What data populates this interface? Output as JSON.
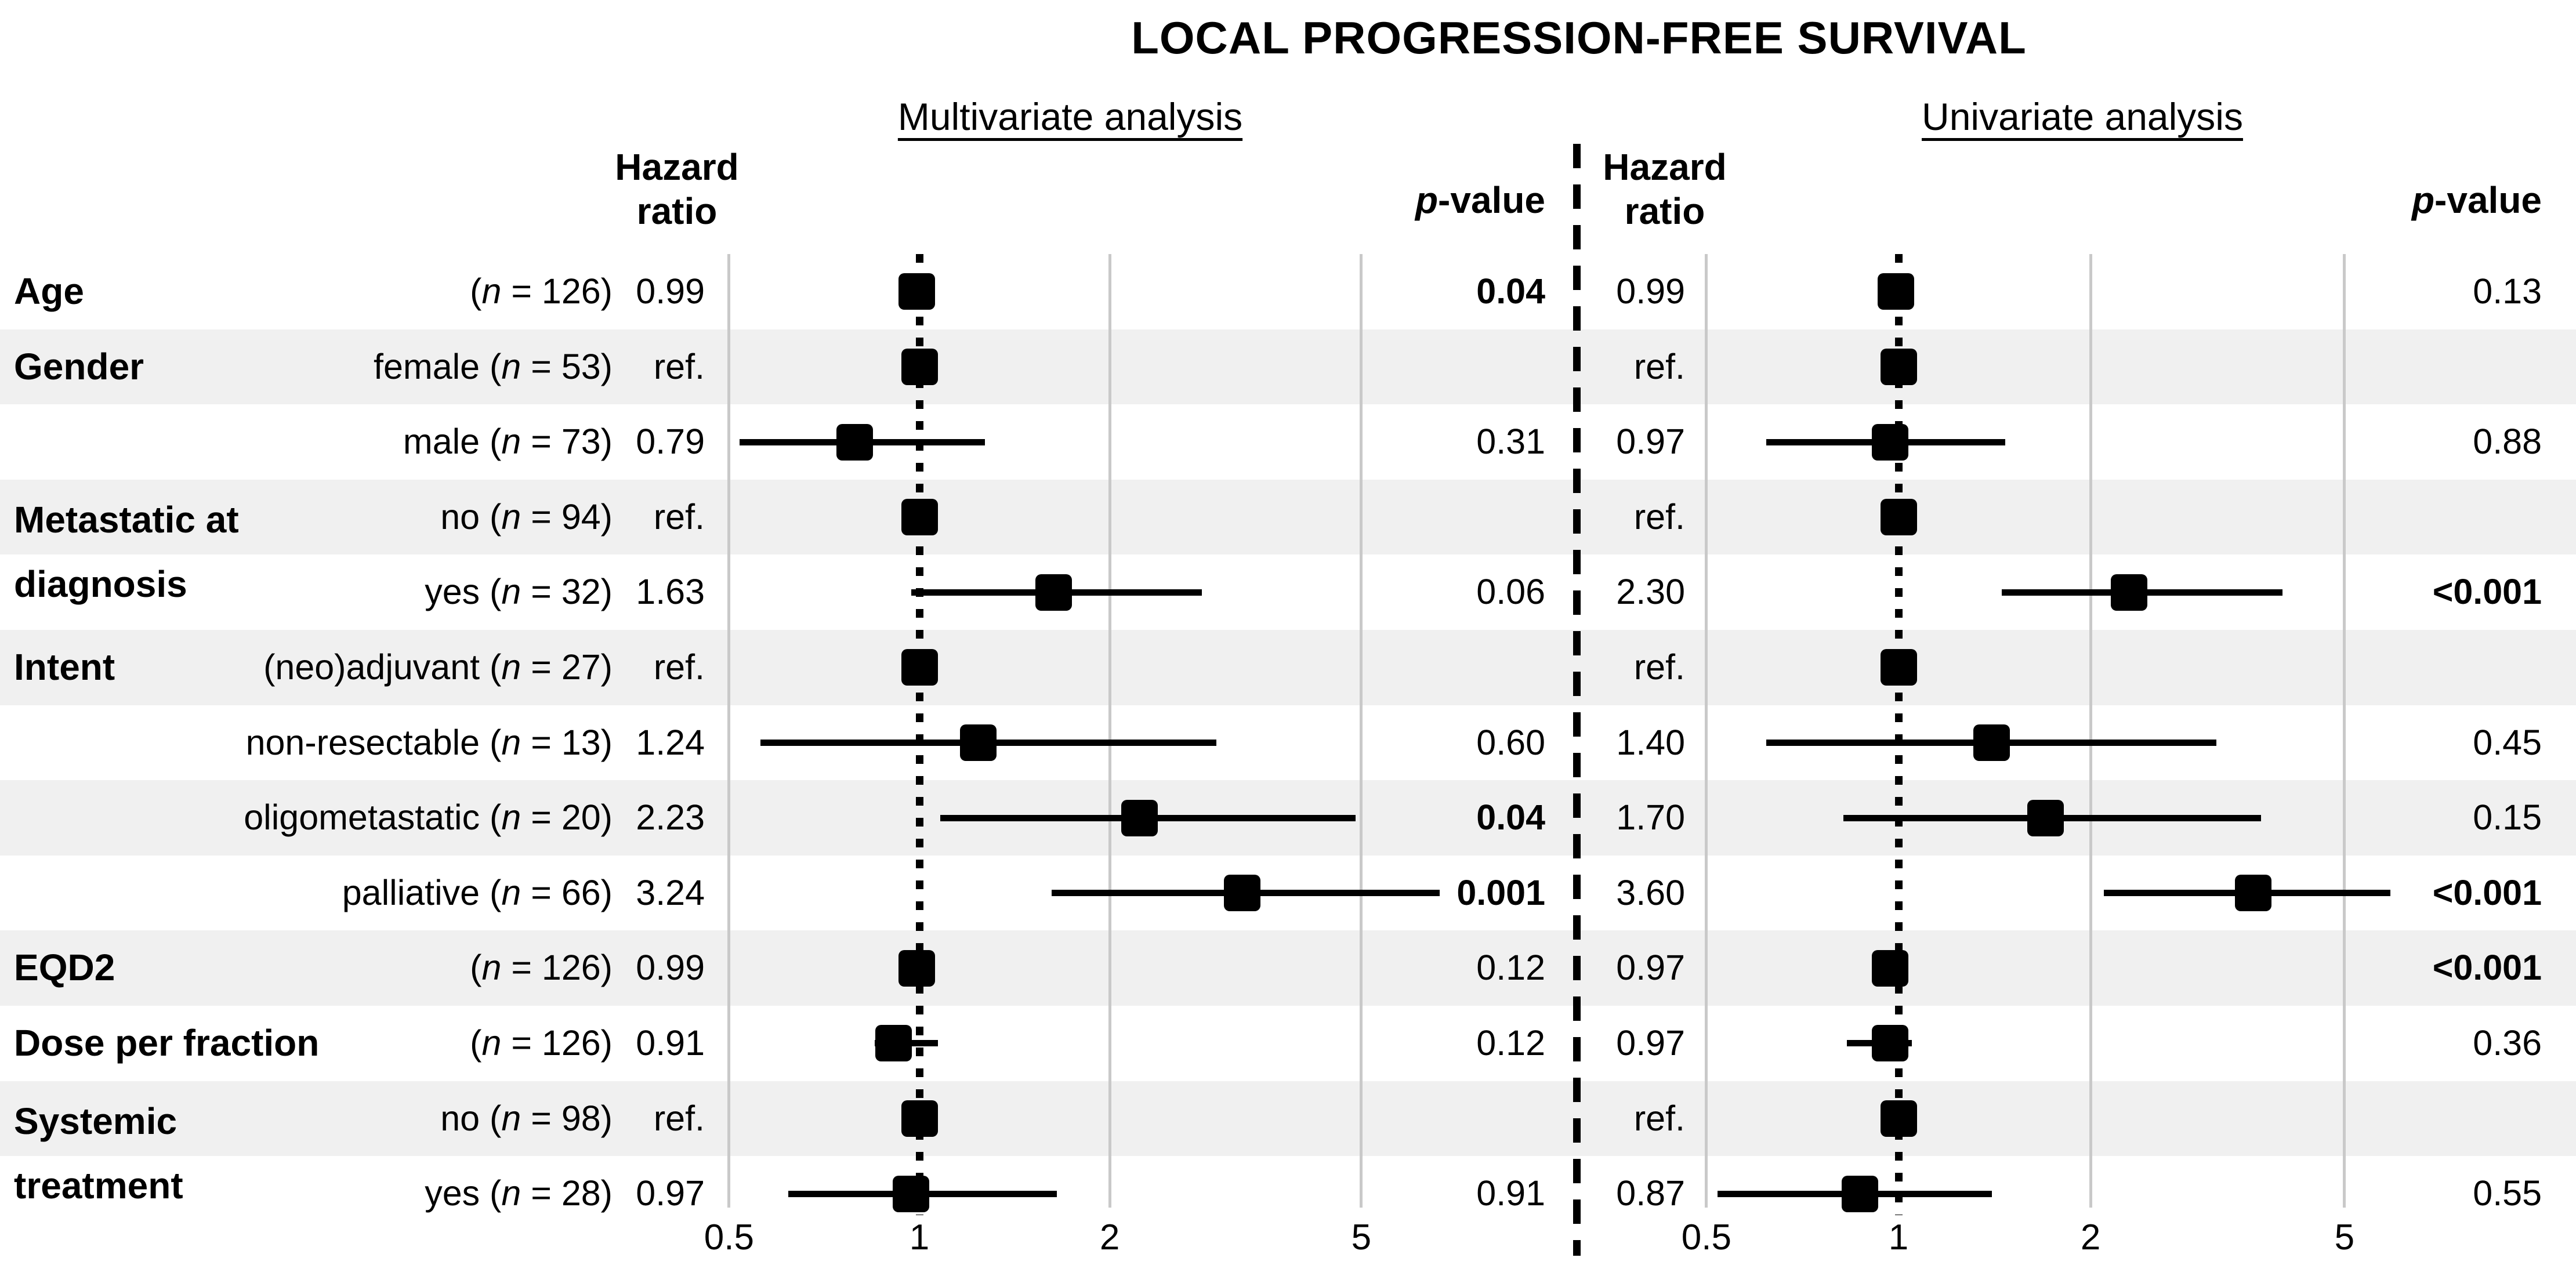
{
  "title": "LOCAL PROGRESSION-FREE SURVIVAL",
  "headers": {
    "multivariate": "Multivariate analysis",
    "univariate": "Univariate analysis",
    "hazard_ratio": [
      "Hazard",
      "ratio"
    ],
    "p_value": "p-value"
  },
  "colors": {
    "ink": "#000000",
    "row_band": "#f0f0f0",
    "gridline": "#c9c9c9",
    "background": "#ffffff"
  },
  "chart_data": {
    "type": "forest",
    "title": "LOCAL PROGRESSION-FREE SURVIVAL",
    "x_scale": "log",
    "x_ticks": [
      0.5,
      1,
      2,
      5
    ],
    "x_tick_labels": [
      "0.5",
      "1",
      "2",
      "5"
    ],
    "reference_value": 1,
    "panels": [
      "Multivariate analysis",
      "Univariate analysis"
    ],
    "columns": [
      "Hazard ratio",
      "plot",
      "p-value"
    ],
    "rows": [
      {
        "group": "Age",
        "label": "(n = 126)",
        "shaded": false,
        "multivariate": {
          "hr": "0.99",
          "ref": false,
          "est": 0.99,
          "lo": null,
          "hi": null,
          "p": "0.04",
          "p_bold": true
        },
        "univariate": {
          "hr": "0.99",
          "ref": false,
          "est": 0.99,
          "lo": null,
          "hi": null,
          "p": "0.13",
          "p_bold": false
        }
      },
      {
        "group": "Gender",
        "label": "female (n = 53)",
        "shaded": true,
        "multivariate": {
          "hr": "ref.",
          "ref": true,
          "est": 1.0,
          "lo": null,
          "hi": null,
          "p": "",
          "p_bold": false
        },
        "univariate": {
          "hr": "ref.",
          "ref": true,
          "est": 1.0,
          "lo": null,
          "hi": null,
          "p": "",
          "p_bold": false
        }
      },
      {
        "group": "",
        "label": "male (n = 73)",
        "shaded": false,
        "multivariate": {
          "hr": "0.79",
          "ref": false,
          "est": 0.79,
          "lo": 0.52,
          "hi": 1.27,
          "p": "0.31",
          "p_bold": false
        },
        "univariate": {
          "hr": "0.97",
          "ref": false,
          "est": 0.97,
          "lo": 0.62,
          "hi": 1.47,
          "p": "0.88",
          "p_bold": false
        }
      },
      {
        "group": "Metastatic at\ndiagnosis",
        "label": "no (n = 94)",
        "shaded": true,
        "multivariate": {
          "hr": "ref.",
          "ref": true,
          "est": 1.0,
          "lo": null,
          "hi": null,
          "p": "",
          "p_bold": false
        },
        "univariate": {
          "hr": "ref.",
          "ref": true,
          "est": 1.0,
          "lo": null,
          "hi": null,
          "p": "",
          "p_bold": false
        }
      },
      {
        "group": "",
        "label": "yes (n = 32)",
        "shaded": false,
        "multivariate": {
          "hr": "1.63",
          "ref": false,
          "est": 1.63,
          "lo": 0.97,
          "hi": 2.8,
          "p": "0.06",
          "p_bold": false
        },
        "univariate": {
          "hr": "2.30",
          "ref": false,
          "est": 2.3,
          "lo": 1.45,
          "hi": 4.0,
          "p": "<0.001",
          "p_bold": true
        }
      },
      {
        "group": "Intent",
        "label": "(neo)adjuvant (n = 27)",
        "shaded": true,
        "multivariate": {
          "hr": "ref.",
          "ref": true,
          "est": 1.0,
          "lo": null,
          "hi": null,
          "p": "",
          "p_bold": false
        },
        "univariate": {
          "hr": "ref.",
          "ref": true,
          "est": 1.0,
          "lo": null,
          "hi": null,
          "p": "",
          "p_bold": false
        }
      },
      {
        "group": "",
        "label": "non-resectable (n = 13)",
        "shaded": false,
        "multivariate": {
          "hr": "1.24",
          "ref": false,
          "est": 1.24,
          "lo": 0.56,
          "hi": 2.95,
          "p": "0.60",
          "p_bold": false
        },
        "univariate": {
          "hr": "1.40",
          "ref": false,
          "est": 1.4,
          "lo": 0.62,
          "hi": 3.15,
          "p": "0.45",
          "p_bold": false
        }
      },
      {
        "group": "",
        "label": "oligometastatic (n = 20)",
        "shaded": true,
        "multivariate": {
          "hr": "2.23",
          "ref": false,
          "est": 2.23,
          "lo": 1.08,
          "hi": 4.9,
          "p": "0.04",
          "p_bold": true
        },
        "univariate": {
          "hr": "1.70",
          "ref": false,
          "est": 1.7,
          "lo": 0.82,
          "hi": 3.7,
          "p": "0.15",
          "p_bold": false
        }
      },
      {
        "group": "",
        "label": "palliative (n = 66)",
        "shaded": false,
        "multivariate": {
          "hr": "3.24",
          "ref": false,
          "est": 3.24,
          "lo": 1.62,
          "hi": 6.65,
          "p": "0.001",
          "p_bold": true
        },
        "univariate": {
          "hr": "3.60",
          "ref": false,
          "est": 3.6,
          "lo": 2.1,
          "hi": 5.9,
          "p": "<0.001",
          "p_bold": true
        }
      },
      {
        "group": "EQD2",
        "label": "(n = 126)",
        "shaded": true,
        "multivariate": {
          "hr": "0.99",
          "ref": false,
          "est": 0.99,
          "lo": null,
          "hi": null,
          "p": "0.12",
          "p_bold": false
        },
        "univariate": {
          "hr": "0.97",
          "ref": false,
          "est": 0.97,
          "lo": null,
          "hi": null,
          "p": "<0.001",
          "p_bold": true
        }
      },
      {
        "group": "Dose per fraction",
        "label": "(n = 126)",
        "shaded": false,
        "multivariate": {
          "hr": "0.91",
          "ref": false,
          "est": 0.91,
          "lo": 0.85,
          "hi": 1.07,
          "p": "0.12",
          "p_bold": false
        },
        "univariate": {
          "hr": "0.97",
          "ref": false,
          "est": 0.97,
          "lo": 0.83,
          "hi": 1.05,
          "p": "0.36",
          "p_bold": false
        }
      },
      {
        "group": "Systemic\ntreatment",
        "label": "no (n = 98)",
        "shaded": true,
        "multivariate": {
          "hr": "ref.",
          "ref": true,
          "est": 1.0,
          "lo": null,
          "hi": null,
          "p": "",
          "p_bold": false
        },
        "univariate": {
          "hr": "ref.",
          "ref": true,
          "est": 1.0,
          "lo": null,
          "hi": null,
          "p": "",
          "p_bold": false
        }
      },
      {
        "group": "",
        "label": "yes (n = 28)",
        "shaded": false,
        "multivariate": {
          "hr": "0.97",
          "ref": false,
          "est": 0.97,
          "lo": 0.62,
          "hi": 1.65,
          "p": "0.91",
          "p_bold": false
        },
        "univariate": {
          "hr": "0.87",
          "ref": false,
          "est": 0.87,
          "lo": 0.52,
          "hi": 1.4,
          "p": "0.55",
          "p_bold": false
        }
      }
    ]
  }
}
